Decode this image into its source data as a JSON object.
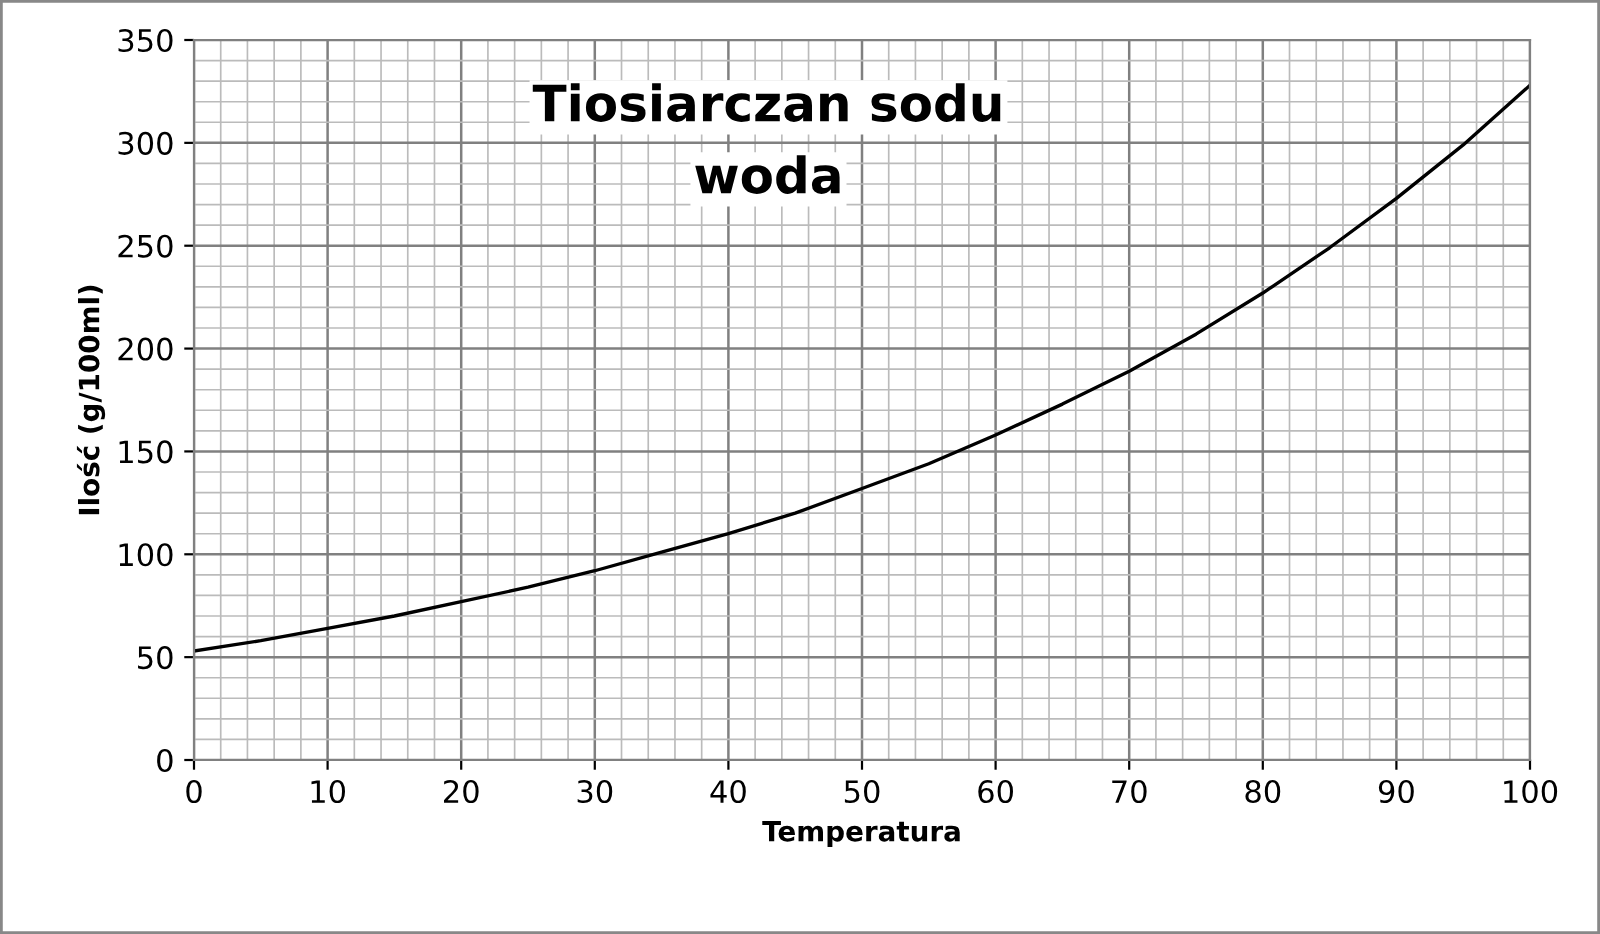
{
  "chart_data": {
    "type": "line",
    "title": "Tiosiarczan sodu",
    "subtitle": "woda",
    "xlabel": "Temperatura",
    "ylabel": "Ilość (g/100ml)",
    "x": [
      0,
      5,
      10,
      15,
      20,
      25,
      30,
      35,
      40,
      45,
      50,
      55,
      60,
      65,
      70,
      75,
      80,
      85,
      90,
      95,
      100
    ],
    "series": [
      {
        "color": "#000000",
        "values": [
          53,
          58,
          64,
          70,
          77,
          84,
          92,
          101,
          110,
          120,
          132,
          144,
          158,
          173,
          189,
          207,
          227,
          249,
          273,
          299,
          328
        ]
      }
    ],
    "xlim": [
      0,
      100
    ],
    "xticks": [
      0,
      10,
      20,
      30,
      40,
      50,
      60,
      70,
      80,
      90,
      100
    ],
    "ylim": [
      0,
      350
    ],
    "yticks": [
      0,
      50,
      100,
      150,
      200,
      250,
      300,
      350
    ],
    "grid": true,
    "legend": false,
    "marker": "none",
    "line_style": "solid"
  }
}
